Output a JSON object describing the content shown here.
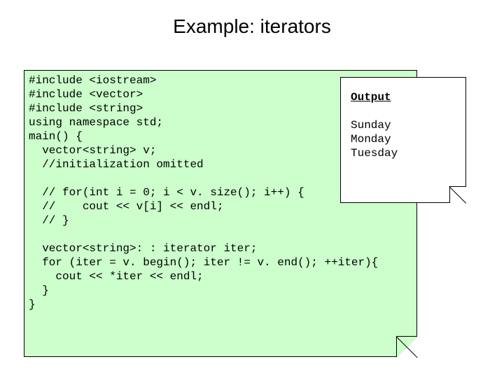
{
  "title": "Example: iterators",
  "code": {
    "background_color": "#ccffcc",
    "border_color": "#000000",
    "font_family": "Courier New",
    "font_size_pt": 12,
    "lines": [
      "#include <iostream>",
      "#include <vector>",
      "#include <string>",
      "using namespace std;",
      "main() {",
      "  vector<string> v;",
      "  //initialization omitted",
      "",
      "  // for(int i = 0; i < v. size(); i++) {",
      "  //    cout << v[i] << endl;",
      "  // }",
      "",
      "  vector<string>: : iterator iter;",
      "  for (iter = v. begin(); iter != v. end(); ++iter){",
      "    cout << *iter << endl;",
      "  }",
      "}"
    ]
  },
  "output": {
    "background_color": "#ffffff",
    "border_color": "#000000",
    "font_family": "Courier New",
    "font_size_pt": 12,
    "heading": "Output",
    "lines": [
      "Sunday",
      "Monday",
      "Tuesday"
    ]
  },
  "colors": {
    "slide_background": "#ffffff",
    "title_color": "#000000",
    "text_color": "#000000"
  }
}
